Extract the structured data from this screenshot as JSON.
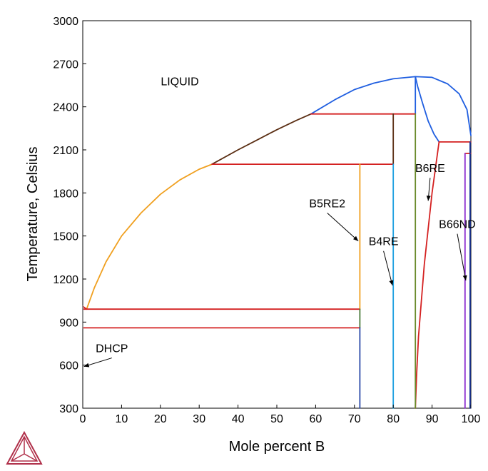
{
  "chart_data": {
    "type": "line",
    "title": "",
    "xlabel": "Mole percent B",
    "ylabel": "Temperature, Celsius",
    "xlim": [
      0,
      100
    ],
    "ylim": [
      300,
      3000
    ],
    "x_ticks": [
      0,
      10,
      20,
      30,
      40,
      50,
      60,
      70,
      80,
      90,
      100
    ],
    "y_ticks": [
      300,
      600,
      900,
      1200,
      1500,
      1800,
      2100,
      2400,
      2700,
      3000
    ],
    "grid": false,
    "legend": "none",
    "annotations": [
      {
        "text": "LIQUID",
        "x": 25,
        "y": 2550
      },
      {
        "text": "DHCP",
        "x": 7.5,
        "y": 690,
        "arrow_to": [
          0.3,
          590
        ]
      },
      {
        "text": "B5RE2",
        "x": 63,
        "y": 1700,
        "arrow_to": [
          71,
          1465
        ]
      },
      {
        "text": "B4RE",
        "x": 77.5,
        "y": 1435,
        "arrow_to": [
          79.8,
          1155
        ]
      },
      {
        "text": "B6RE",
        "x": 89.5,
        "y": 1945,
        "arrow_to": [
          89,
          1745
        ]
      },
      {
        "text": "B66ND",
        "x": 96.5,
        "y": 1555,
        "arrow_to": [
          98.7,
          1190
        ]
      }
    ],
    "series": [
      {
        "color": "#f0a020",
        "points": [
          [
            1,
            990
          ],
          [
            3,
            1140
          ],
          [
            6,
            1320
          ],
          [
            10,
            1500
          ],
          [
            15,
            1660
          ],
          [
            20,
            1790
          ],
          [
            25,
            1890
          ],
          [
            30,
            1965
          ],
          [
            33.3,
            2000
          ]
        ]
      },
      {
        "color": "#5a2d12",
        "points": [
          [
            33.3,
            2000
          ],
          [
            40,
            2100
          ],
          [
            45,
            2170
          ],
          [
            50,
            2240
          ],
          [
            55,
            2305
          ],
          [
            58.8,
            2350
          ]
        ]
      },
      {
        "color": "#1f5ee0",
        "points": [
          [
            58.8,
            2350
          ],
          [
            65,
            2450
          ],
          [
            70,
            2520
          ],
          [
            75,
            2565
          ],
          [
            80,
            2595
          ],
          [
            85.7,
            2610
          ],
          [
            90,
            2605
          ],
          [
            94,
            2560
          ],
          [
            97,
            2490
          ],
          [
            99,
            2380
          ],
          [
            100,
            2200
          ]
        ]
      },
      {
        "color": "#1f5ee0",
        "points": [
          [
            85.7,
            2610
          ],
          [
            86.3,
            2540
          ],
          [
            87.5,
            2430
          ],
          [
            89,
            2300
          ],
          [
            90.5,
            2210
          ],
          [
            91.8,
            2155
          ]
        ]
      },
      {
        "color": "#1f5ee0",
        "points": [
          [
            85.7,
            2610
          ],
          [
            85.7,
            2350
          ]
        ]
      },
      {
        "color": "#d42020",
        "points": [
          [
            58.8,
            2350
          ],
          [
            85.7,
            2350
          ]
        ]
      },
      {
        "color": "#d42020",
        "points": [
          [
            33.3,
            2000
          ],
          [
            80,
            2000
          ]
        ]
      },
      {
        "color": "#d42020",
        "points": [
          [
            91.8,
            2155
          ],
          [
            100,
            2155
          ]
        ]
      },
      {
        "color": "#d42020",
        "points": [
          [
            98.5,
            2075
          ],
          [
            100,
            2075
          ]
        ]
      },
      {
        "color": "#d42020",
        "points": [
          [
            0,
            990
          ],
          [
            71.4,
            990
          ]
        ]
      },
      {
        "color": "#d42020",
        "points": [
          [
            0,
            860
          ],
          [
            71.4,
            860
          ]
        ]
      },
      {
        "color": "#d42020",
        "points": [
          [
            85.7,
            300
          ],
          [
            86,
            520
          ],
          [
            86.5,
            800
          ],
          [
            88,
            1300
          ],
          [
            90,
            1800
          ],
          [
            91.8,
            2155
          ]
        ]
      },
      {
        "color": "#d42020",
        "points": [
          [
            0,
            1010
          ],
          [
            1,
            990
          ]
        ]
      },
      {
        "color": "#5a2d12",
        "points": [
          [
            80,
            2000
          ],
          [
            80,
            2350
          ]
        ]
      },
      {
        "color": "#f0a020",
        "points": [
          [
            71.4,
            990
          ],
          [
            71.4,
            2000
          ]
        ]
      },
      {
        "color": "#4a7a3a",
        "points": [
          [
            71.4,
            860
          ],
          [
            71.4,
            990
          ]
        ]
      },
      {
        "color": "#2a4aa8",
        "points": [
          [
            71.4,
            300
          ],
          [
            71.4,
            860
          ]
        ]
      },
      {
        "color": "#1a9ee0",
        "points": [
          [
            80,
            300
          ],
          [
            80,
            2000
          ]
        ]
      },
      {
        "color": "#6a8a2a",
        "points": [
          [
            85.7,
            300
          ],
          [
            85.7,
            2350
          ]
        ]
      },
      {
        "color": "#8a2ad0",
        "points": [
          [
            98.5,
            300
          ],
          [
            98.5,
            2075
          ]
        ]
      },
      {
        "color": "#1f3aa0",
        "points": [
          [
            99.8,
            300
          ],
          [
            99.8,
            2155
          ]
        ]
      },
      {
        "color": "#888888",
        "points": [
          [
            0,
            860
          ],
          [
            0,
            1010
          ]
        ]
      }
    ]
  },
  "logo": {
    "name": "thermo-calc-logo-icon",
    "color": "#b0304a"
  }
}
